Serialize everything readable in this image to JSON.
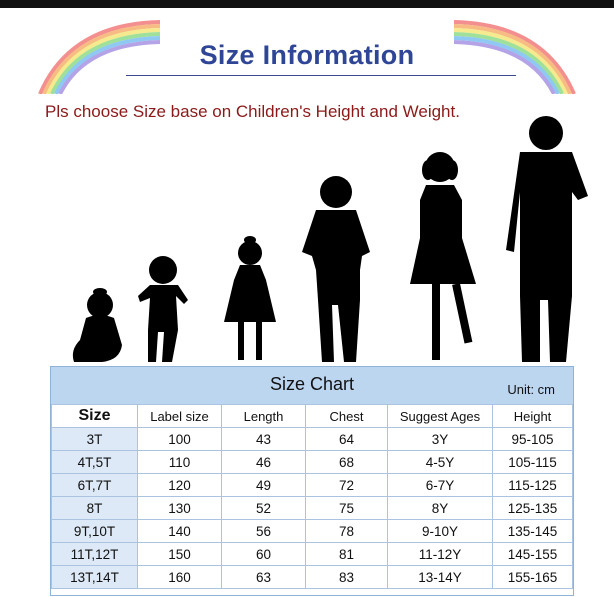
{
  "header": {
    "title": "Size Information",
    "subtitle": "Pls choose Size base on Children's Height and Weight."
  },
  "illustration": {
    "icon": "children-height-silhouettes-icon"
  },
  "size_chart": {
    "title": "Size Chart",
    "unit": "Unit: cm",
    "columns": [
      "Size",
      "Label size",
      "Length",
      "Chest",
      "Suggest Ages",
      "Height"
    ],
    "rows": [
      [
        "3T",
        "100",
        "43",
        "64",
        "3Y",
        "95-105"
      ],
      [
        "4T,5T",
        "110",
        "46",
        "68",
        "4-5Y",
        "105-115"
      ],
      [
        "6T,7T",
        "120",
        "49",
        "72",
        "6-7Y",
        "115-125"
      ],
      [
        "8T",
        "130",
        "52",
        "75",
        "8Y",
        "125-135"
      ],
      [
        "9T,10T",
        "140",
        "56",
        "78",
        "9-10Y",
        "135-145"
      ],
      [
        "11T,12T",
        "150",
        "60",
        "81",
        "11-12Y",
        "145-155"
      ],
      [
        "13T,14T",
        "160",
        "63",
        "83",
        "13-14Y",
        "155-165"
      ]
    ]
  },
  "colors": {
    "title": "#2f4596",
    "subtitle": "#8b1a1a",
    "header_band": "#bdd6f0",
    "first_column": "#dde9f7",
    "grid": "#a9c3e1"
  }
}
